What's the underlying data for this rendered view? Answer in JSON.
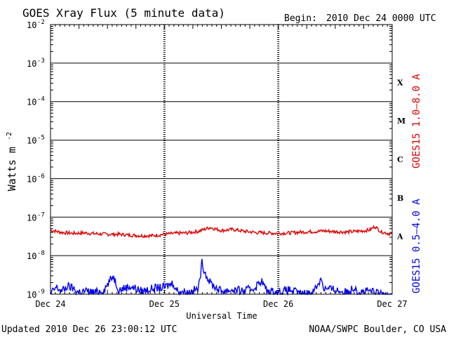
{
  "chart_data": {
    "type": "line",
    "title": "GOES Xray Flux (5 minute data)",
    "begin_label": "Begin:",
    "begin_value": "2010 Dec 24 0000 UTC",
    "xlabel": "Universal Time",
    "ylabel": "Watts m",
    "ylabel_sup": "-2",
    "x_ticks": [
      "Dec 24",
      "Dec 25",
      "Dec 26",
      "Dec 27"
    ],
    "xlim_days": [
      0,
      3
    ],
    "y_scale": "log",
    "ylim": [
      1e-09,
      0.01
    ],
    "y_ticks": [
      {
        "base": "10",
        "exp": "-9",
        "value": 1e-09
      },
      {
        "base": "10",
        "exp": "-8",
        "value": 1e-08
      },
      {
        "base": "10",
        "exp": "-7",
        "value": 1e-07
      },
      {
        "base": "10",
        "exp": "-6",
        "value": 1e-06
      },
      {
        "base": "10",
        "exp": "-5",
        "value": 1e-05
      },
      {
        "base": "10",
        "exp": "-4",
        "value": 0.0001
      },
      {
        "base": "10",
        "exp": "-3",
        "value": 0.001
      },
      {
        "base": "10",
        "exp": "-2",
        "value": 0.01
      }
    ],
    "flare_classes": [
      {
        "label": "X",
        "low": 0.0001
      },
      {
        "label": "M",
        "low": 1e-05
      },
      {
        "label": "C",
        "low": 1e-06
      },
      {
        "label": "B",
        "low": 1e-07
      },
      {
        "label": "A",
        "low": 1e-08
      }
    ],
    "grid": true,
    "series": [
      {
        "name": "GOES15 1.0–8.0 A",
        "color": "#dd0000",
        "points": [
          [
            0.0,
            4.6e-08
          ],
          [
            0.1,
            4e-08
          ],
          [
            0.2,
            3.8e-08
          ],
          [
            0.3,
            3.9e-08
          ],
          [
            0.4,
            3.7e-08
          ],
          [
            0.5,
            3.6e-08
          ],
          [
            0.6,
            3.6e-08
          ],
          [
            0.7,
            3.4e-08
          ],
          [
            0.8,
            3.3e-08
          ],
          [
            0.9,
            3.3e-08
          ],
          [
            1.0,
            3.6e-08
          ],
          [
            1.1,
            3.8e-08
          ],
          [
            1.2,
            3.9e-08
          ],
          [
            1.3,
            4.3e-08
          ],
          [
            1.4,
            5.4e-08
          ],
          [
            1.5,
            4.5e-08
          ],
          [
            1.6,
            4.8e-08
          ],
          [
            1.7,
            4.3e-08
          ],
          [
            1.8,
            4e-08
          ],
          [
            1.9,
            3.9e-08
          ],
          [
            2.0,
            3.8e-08
          ],
          [
            2.1,
            3.9e-08
          ],
          [
            2.2,
            4.1e-08
          ],
          [
            2.3,
            4.2e-08
          ],
          [
            2.4,
            4.4e-08
          ],
          [
            2.5,
            4.2e-08
          ],
          [
            2.6,
            4.1e-08
          ],
          [
            2.7,
            4.3e-08
          ],
          [
            2.8,
            4.6e-08
          ],
          [
            2.85,
            5.8e-08
          ],
          [
            2.9,
            4.2e-08
          ],
          [
            3.0,
            3.6e-08
          ]
        ]
      },
      {
        "name": "GOES15 0.5–4.0 A",
        "color": "#0000ee",
        "points": [
          [
            0.0,
            1e-09
          ],
          [
            0.05,
            1.5e-09
          ],
          [
            0.1,
            1.2e-09
          ],
          [
            0.15,
            1.6e-09
          ],
          [
            0.2,
            1.4e-09
          ],
          [
            0.25,
            1.1e-09
          ],
          [
            0.3,
            1.2e-09
          ],
          [
            0.4,
            1.1e-09
          ],
          [
            0.47,
            1.3e-09
          ],
          [
            0.55,
            3e-09
          ],
          [
            0.6,
            1.3e-09
          ],
          [
            0.7,
            1.6e-09
          ],
          [
            0.8,
            1.2e-09
          ],
          [
            0.9,
            1.4e-09
          ],
          [
            1.0,
            1.5e-09
          ],
          [
            1.08,
            2e-09
          ],
          [
            1.1,
            1.3e-09
          ],
          [
            1.2,
            1.1e-09
          ],
          [
            1.3,
            1.4e-09
          ],
          [
            1.33,
            6.5e-09
          ],
          [
            1.36,
            3.5e-09
          ],
          [
            1.4,
            2e-09
          ],
          [
            1.45,
            1.5e-09
          ],
          [
            1.5,
            1.2e-09
          ],
          [
            1.6,
            1.3e-09
          ],
          [
            1.7,
            1.2e-09
          ],
          [
            1.8,
            1.5e-09
          ],
          [
            1.85,
            2.3e-09
          ],
          [
            1.9,
            1.2e-09
          ],
          [
            2.0,
            1.1e-09
          ],
          [
            2.1,
            1.3e-09
          ],
          [
            2.2,
            1e-09
          ],
          [
            2.3,
            1.1e-09
          ],
          [
            2.38,
            2.6e-09
          ],
          [
            2.4,
            1.4e-09
          ],
          [
            2.5,
            1.3e-09
          ],
          [
            2.6,
            1.1e-09
          ],
          [
            2.68,
            1.6e-09
          ],
          [
            2.7,
            1.1e-09
          ],
          [
            2.8,
            1.2e-09
          ],
          [
            2.9,
            1e-09
          ],
          [
            3.0,
            1e-09
          ]
        ]
      }
    ]
  },
  "footer": {
    "updated": "Updated 2010 Dec 26 23:00:12 UTC",
    "source": "NOAA/SWPC Boulder, CO USA"
  }
}
